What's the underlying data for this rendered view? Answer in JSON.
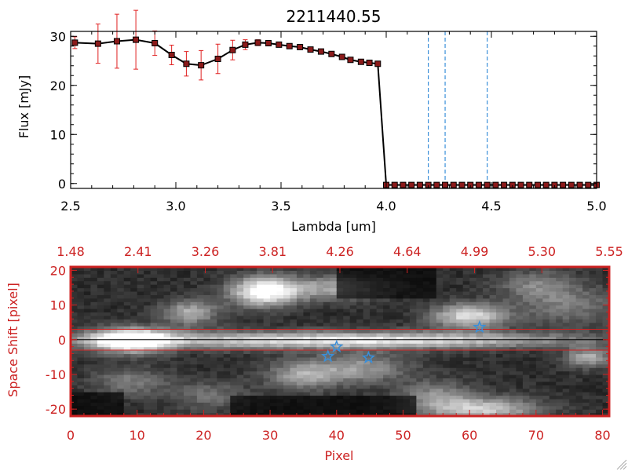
{
  "chart_data": [
    {
      "type": "line",
      "title": "2211440.55",
      "xlabel": "Lambda [um]",
      "ylabel": "Flux [mJy]",
      "xlim": [
        2.5,
        5.0
      ],
      "ylim": [
        -1,
        31
      ],
      "xticks": [
        "2.5",
        "3.0",
        "3.5",
        "4.0",
        "4.5",
        "5.0"
      ],
      "yticks": [
        "0",
        "10",
        "20",
        "30"
      ],
      "series": [
        {
          "name": "flux",
          "x": [
            2.52,
            2.63,
            2.72,
            2.81,
            2.9,
            2.98,
            3.05,
            3.12,
            3.2,
            3.27,
            3.33,
            3.39,
            3.44,
            3.49,
            3.54,
            3.59,
            3.64,
            3.69,
            3.74,
            3.79,
            3.83,
            3.88,
            3.92,
            3.96,
            4.0,
            4.04,
            4.08,
            4.12,
            4.16,
            4.2,
            4.24,
            4.28,
            4.32,
            4.36,
            4.4,
            4.44,
            4.48,
            4.52,
            4.56,
            4.6,
            4.64,
            4.68,
            4.72,
            4.76,
            4.8,
            4.84,
            4.88,
            4.92,
            4.96,
            5.0
          ],
          "y": [
            28.7,
            28.5,
            29.0,
            29.3,
            28.6,
            26.2,
            24.4,
            24.1,
            25.4,
            27.2,
            28.3,
            28.7,
            28.6,
            28.3,
            28.0,
            27.8,
            27.3,
            26.9,
            26.4,
            25.8,
            25.2,
            24.8,
            24.6,
            24.4,
            -0.3,
            -0.3,
            -0.3,
            -0.3,
            -0.3,
            -0.3,
            -0.3,
            -0.3,
            -0.3,
            -0.3,
            -0.3,
            -0.3,
            -0.3,
            -0.3,
            -0.3,
            -0.3,
            -0.3,
            -0.3,
            -0.3,
            -0.3,
            -0.3,
            -0.3,
            -0.3,
            -0.3,
            -0.3,
            -0.3
          ],
          "yerr": [
            1.2,
            4.0,
            5.5,
            6.0,
            2.5,
            2.0,
            2.5,
            3.0,
            3.0,
            2.0,
            1.0,
            0.6,
            0.4,
            0.4,
            0.4,
            0.4,
            0.4,
            0.4,
            0.4,
            0.4,
            0.3,
            0.3,
            0.3,
            0.3,
            0.1,
            0.1,
            0.1,
            0.1,
            0.1,
            0.1,
            0.1,
            0.1,
            0.1,
            0.1,
            0.1,
            0.1,
            0.1,
            0.1,
            0.1,
            0.1,
            0.1,
            0.1,
            0.1,
            0.1,
            0.1,
            0.1,
            0.1,
            0.1,
            0.1,
            0.1
          ]
        }
      ],
      "vlines": [
        4.2,
        4.28,
        4.48
      ],
      "colors": {
        "axis": "#000000",
        "line": "#000000",
        "marker": "#8b1a1a",
        "errorbar": "#e02020",
        "vline": "#3a8fd9"
      }
    },
    {
      "type": "heatmap",
      "xlabel": "Pixel",
      "ylabel": "Space Shift [pixel]",
      "xlim": [
        0,
        81
      ],
      "ylim": [
        -22,
        21
      ],
      "xticks": [
        "0",
        "10",
        "20",
        "30",
        "40",
        "50",
        "60",
        "70",
        "80"
      ],
      "yticks": [
        "-20",
        "-10",
        "0",
        "10",
        "20"
      ],
      "top_axis_ticks": [
        "1.48",
        "2.41",
        "3.26",
        "3.81",
        "4.26",
        "4.64",
        "4.99",
        "5.30",
        "5.55"
      ],
      "band_lines": [
        3,
        -3
      ],
      "center_line": 0,
      "stars": [
        {
          "x": 40,
          "y": -2
        },
        {
          "x": 38.7,
          "y": -4.8
        },
        {
          "x": 44.8,
          "y": -5.2
        },
        {
          "x": 61.5,
          "y": 3.6
        }
      ],
      "blobs": [
        {
          "x": 9,
          "y": 0,
          "sx": 4,
          "sy": 2.4,
          "v": 1.0
        },
        {
          "x": 30,
          "y": 0,
          "sx": 24,
          "sy": 1.8,
          "v": 0.55
        },
        {
          "x": 55,
          "y": 0,
          "sx": 18,
          "sy": 1.6,
          "v": 0.35
        },
        {
          "x": 29,
          "y": 14,
          "sx": 3.5,
          "sy": 3,
          "v": 0.85
        },
        {
          "x": 18,
          "y": 8,
          "sx": 3,
          "sy": 2.5,
          "v": 0.5
        },
        {
          "x": 39,
          "y": 15,
          "sx": 6,
          "sy": 2.5,
          "v": 0.45
        },
        {
          "x": 60,
          "y": 7,
          "sx": 4,
          "sy": 2.5,
          "v": 0.7
        },
        {
          "x": 75,
          "y": 10,
          "sx": 5,
          "sy": 4,
          "v": 0.3
        },
        {
          "x": 35,
          "y": -10,
          "sx": 4,
          "sy": 3,
          "v": 0.45
        },
        {
          "x": 44,
          "y": -8,
          "sx": 5,
          "sy": 3,
          "v": 0.4
        },
        {
          "x": 62,
          "y": -20,
          "sx": 6,
          "sy": 2.5,
          "v": 0.6
        },
        {
          "x": 55,
          "y": -16,
          "sx": 4,
          "sy": 3,
          "v": 0.35
        },
        {
          "x": 9,
          "y": -12,
          "sx": 4,
          "sy": 3,
          "v": 0.3
        },
        {
          "x": 78,
          "y": -5,
          "sx": 2.5,
          "sy": 2,
          "v": 0.5
        },
        {
          "x": 21,
          "y": -16,
          "sx": 4,
          "sy": 3,
          "v": 0.25
        },
        {
          "x": 70,
          "y": 16,
          "sx": 4,
          "sy": 3,
          "v": 0.3
        }
      ],
      "colors": {
        "frame": "#cc2222",
        "label": "#cc2222",
        "star": "#3a8fd9",
        "center": "#000000"
      }
    }
  ]
}
